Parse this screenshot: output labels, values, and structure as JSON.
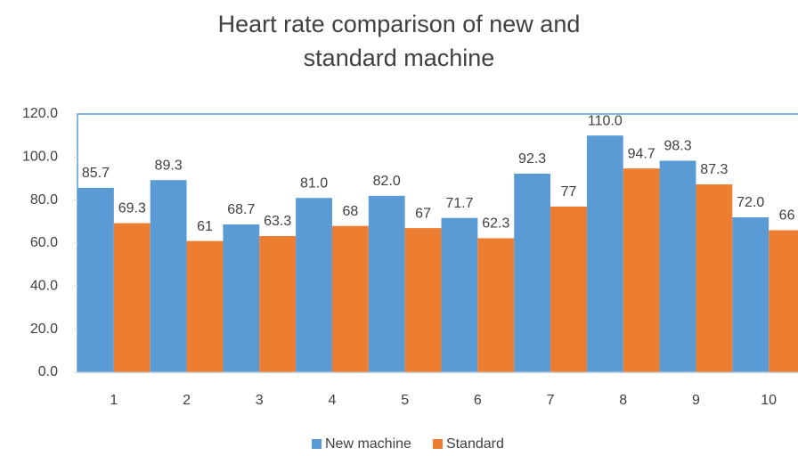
{
  "chart_data": {
    "type": "bar",
    "title": "Heart rate comparison of new and standard machine",
    "categories": [
      "1",
      "2",
      "3",
      "4",
      "5",
      "6",
      "7",
      "8",
      "9",
      "10"
    ],
    "series": [
      {
        "name": "New machine",
        "color": "#5b9bd5",
        "values": [
          85.7,
          89.3,
          68.7,
          81.0,
          82.0,
          71.7,
          92.3,
          110.0,
          98.3,
          72.0
        ],
        "value_labels": [
          "85.7",
          "89.3",
          "68.7",
          "81.0",
          "82.0",
          "71.7",
          "92.3",
          "110.0",
          "98.3",
          "72.0"
        ]
      },
      {
        "name": "Standard",
        "color": "#ed7d31",
        "values": [
          69.3,
          61,
          63.3,
          68,
          67,
          62.3,
          77,
          94.7,
          87.3,
          66
        ]
      }
    ],
    "ylim": [
      0,
      120
    ],
    "yticks": [
      {
        "value": 0,
        "label": "0.0"
      },
      {
        "value": 20,
        "label": "20.0"
      },
      {
        "value": 40,
        "label": "40.0"
      },
      {
        "value": 60,
        "label": "60.0"
      },
      {
        "value": 80,
        "label": "80.0"
      },
      {
        "value": 100,
        "label": "100.0"
      },
      {
        "value": 120,
        "label": "120.0"
      }
    ],
    "legend": "bottom"
  }
}
